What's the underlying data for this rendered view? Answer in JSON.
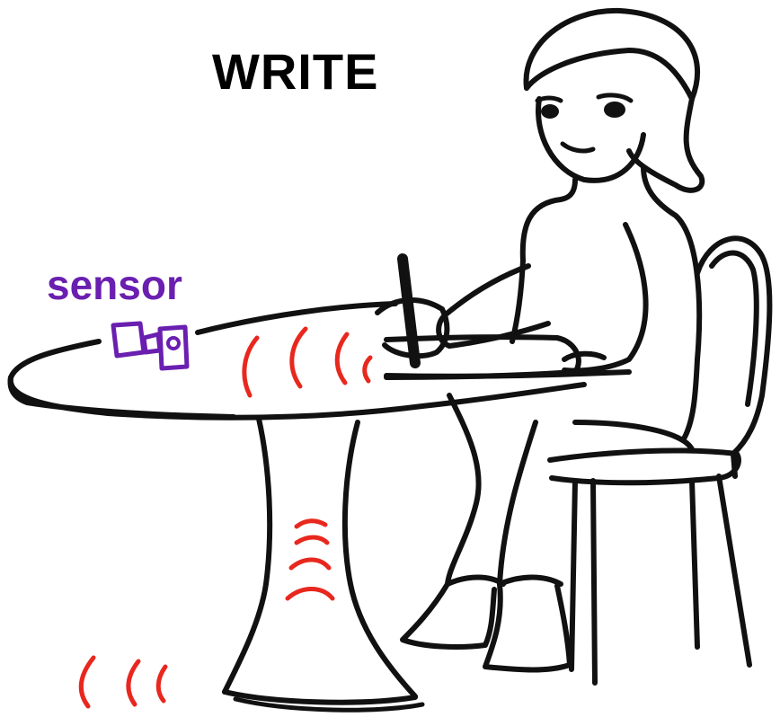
{
  "title": "WRITE",
  "sensor_label": "sensor",
  "colors": {
    "ink": "#111111",
    "sensor": "#6a1fb0",
    "vibration": "#e8281e",
    "background": "#ffffff"
  },
  "elements": {
    "person": "girl-writing-icon",
    "table": "round-table-icon",
    "chair": "chair-icon",
    "sensor": "sensor-device-icon",
    "vibration": "vibration-waves-icon"
  }
}
